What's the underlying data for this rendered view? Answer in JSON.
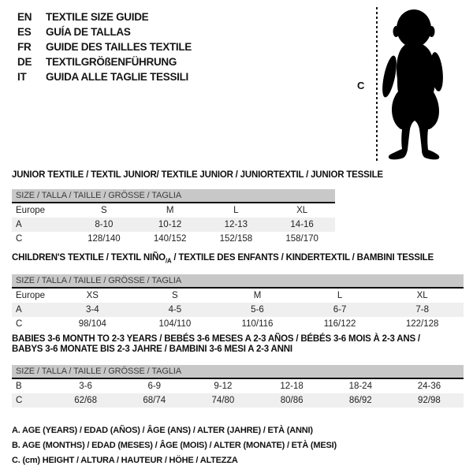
{
  "languages": [
    {
      "code": "EN",
      "title": "TEXTILE SIZE GUIDE"
    },
    {
      "code": "ES",
      "title": "GUÍA DE TALLAS"
    },
    {
      "code": "FR",
      "title": "GUIDE DES TAILLES TEXTILE"
    },
    {
      "code": "DE",
      "title": "TEXTILGRÖßENFÜHRUNG"
    },
    {
      "code": "IT",
      "title": "GUIDA ALLE TAGLIE TESSILI"
    }
  ],
  "figure": {
    "height_label": "C"
  },
  "tables": [
    {
      "heading_lines": [
        [
          {
            "text": "JUNIOR TEXTILE / TEXTIL JUNIOR/ TEXTILE JUNIOR / JUNIORTEXTIL / JUNIOR TESSILE"
          }
        ]
      ],
      "size_header": "SIZE / TALLA / TAILLE / GRÖSSE / TAGLIA",
      "rows": [
        {
          "label": "Europe",
          "values": [
            "S",
            "M",
            "L",
            "XL"
          ]
        },
        {
          "label": "A",
          "values": [
            "8-10",
            "10-12",
            "12-13",
            "14-16"
          ]
        },
        {
          "label": "C",
          "values": [
            "128/140",
            "140/152",
            "152/158",
            "158/170"
          ]
        }
      ]
    },
    {
      "heading_lines": [
        [
          {
            "text": "CHILDREN'S TEXTILE / TEXTIL NIÑO"
          },
          {
            "text": "/A",
            "sub": true
          },
          {
            "text": " / TEXTILE DES ENFANTS / KINDERTEXTIL / BAMBINI TESSILE"
          }
        ]
      ],
      "size_header": "SIZE / TALLA / TAILLE / GRÖSSE / TAGLIA",
      "rows": [
        {
          "label": "Europe",
          "values": [
            "XS",
            "S",
            "M",
            "L",
            "XL"
          ]
        },
        {
          "label": "A",
          "values": [
            "3-4",
            "4-5",
            "5-6",
            "6-7",
            "7-8"
          ]
        },
        {
          "label": "C",
          "values": [
            "98/104",
            "104/110",
            "110/116",
            "116/122",
            "122/128"
          ]
        }
      ]
    },
    {
      "heading_lines": [
        [
          {
            "text": "BABIES 3-6 MONTH TO 2-3 YEARS / BEBÉS 3-6 MESES A 2-3 AÑOS / BÉBÉS 3-6 MOIS À 2-3 ANS /"
          }
        ],
        [
          {
            "text": "BABYS 3-6 MONATE BIS 2-3 JAHRE / BAMBINI 3-6 MESI A 2-3 ANNI"
          }
        ]
      ],
      "size_header": "SIZE / TALLA / TAILLE / GRÖSSE / TAGLIA",
      "rows": [
        {
          "label": "B",
          "values": [
            "3-6",
            "6-9",
            "9-12",
            "12-18",
            "18-24",
            "24-36"
          ]
        },
        {
          "label": "C",
          "values": [
            "62/68",
            "68/74",
            "74/80",
            "80/86",
            "86/92",
            "92/98"
          ]
        }
      ]
    }
  ],
  "notes": [
    "A. AGE (YEARS) / EDAD (AÑOS) / ÂGE (ANS) / ALTER (JAHRE) / ETÀ (ANNI)",
    "B. AGE (MONTHS) / EDAD (MESES) / ÂGE (MOIS) / ALTER (MONATE) / ETÀ (MESI)",
    "C. (cm) HEIGHT / ALTURA / HAUTEUR / HÖHE / ALTEZZA"
  ],
  "colors": {
    "header_bar": "#c8c8c8",
    "row_shaded": "#efefef",
    "text": "#1a1a1a",
    "silhouette": "#000000"
  }
}
